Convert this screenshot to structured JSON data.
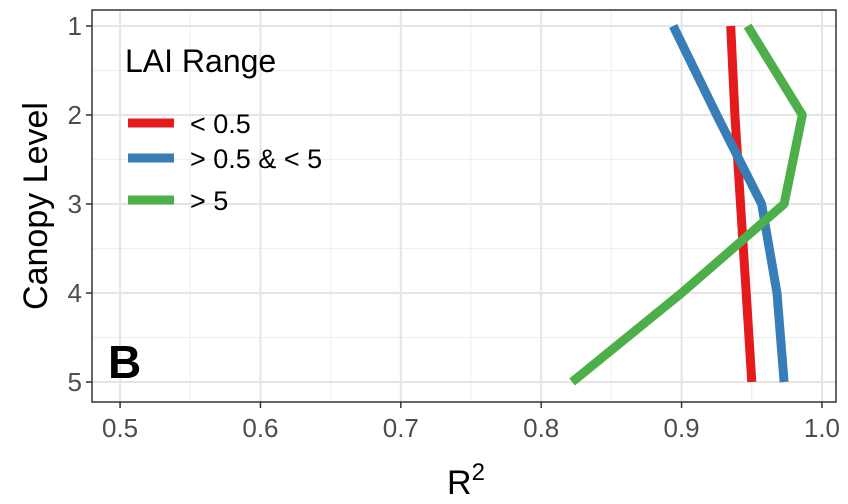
{
  "chart_data": {
    "type": "line",
    "panel_label": "B",
    "xlabel": "R",
    "xlabel_superscript": "2",
    "ylabel": "Canopy Level",
    "xlim": [
      0.48,
      1.01
    ],
    "ylim": [
      1,
      5
    ],
    "y_reversed": true,
    "x_ticks": [
      0.5,
      0.6,
      0.7,
      0.8,
      0.9,
      1.0
    ],
    "x_tick_labels": [
      "0.5",
      "0.6",
      "0.7",
      "0.8",
      "0.9",
      "1.0"
    ],
    "y_ticks": [
      1,
      2,
      3,
      4,
      5
    ],
    "y_tick_labels": [
      "1",
      "2",
      "3",
      "4",
      "5"
    ],
    "grid": true,
    "legend": {
      "title": "LAI Range",
      "placement": "top-left"
    },
    "series": [
      {
        "name": "< 0.5",
        "color": "#e41a1c",
        "x": [
          0.935,
          0.938,
          0.942,
          0.946,
          0.95
        ],
        "y": [
          1,
          2,
          3,
          4,
          5
        ]
      },
      {
        "name": "> 0.5 & < 5",
        "color": "#377eb8",
        "x": [
          0.894,
          0.925,
          0.957,
          0.968,
          0.973
        ],
        "y": [
          1,
          2,
          3,
          4,
          5
        ]
      },
      {
        "name": "> 5",
        "color": "#4daf4a",
        "x": [
          0.947,
          0.986,
          0.973,
          0.9,
          0.822
        ],
        "y": [
          1,
          2,
          3,
          4,
          5
        ]
      }
    ]
  }
}
